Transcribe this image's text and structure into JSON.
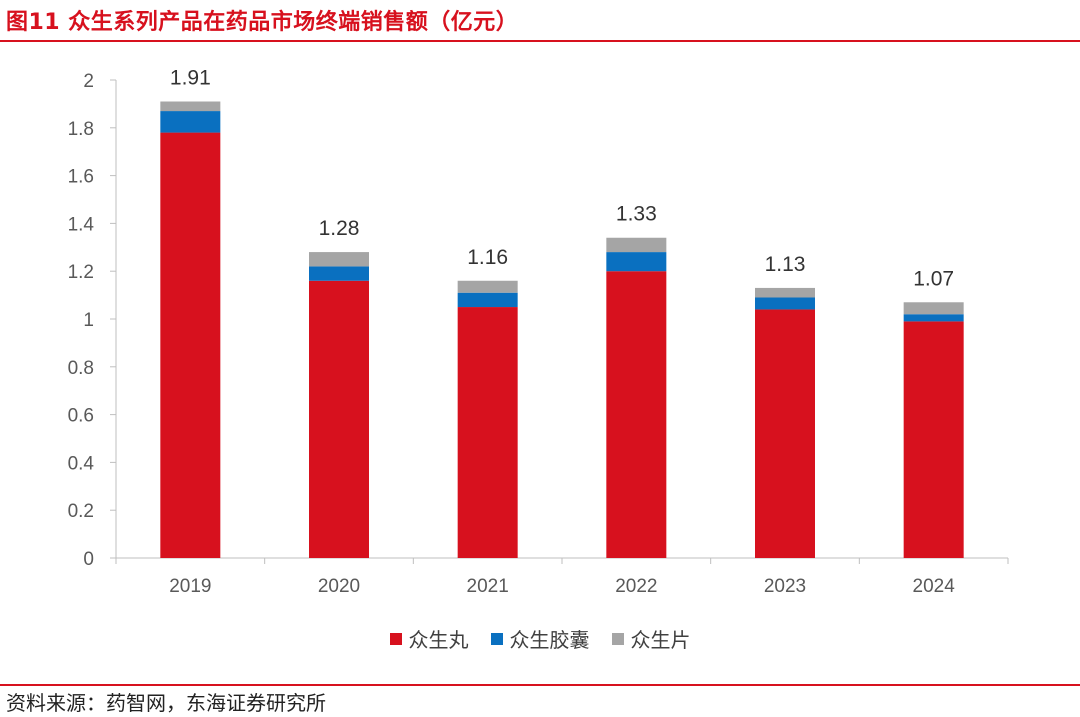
{
  "header": {
    "title": "图11  众生系列产品在药品市场终端销售额（亿元）"
  },
  "footer": {
    "source": "资料来源：药智网，东海证券研究所"
  },
  "chart_data": {
    "type": "bar",
    "stacked": true,
    "categories": [
      "2019",
      "2020",
      "2021",
      "2022",
      "2023",
      "2024"
    ],
    "series": [
      {
        "name": "众生丸",
        "color": "#d7111e",
        "values": [
          1.78,
          1.16,
          1.05,
          1.2,
          1.04,
          0.99
        ]
      },
      {
        "name": "众生胶囊",
        "color": "#0a70c0",
        "values": [
          0.09,
          0.06,
          0.06,
          0.08,
          0.05,
          0.03
        ]
      },
      {
        "name": "众生片",
        "color": "#a5a5a5",
        "values": [
          0.04,
          0.06,
          0.05,
          0.06,
          0.04,
          0.05
        ]
      }
    ],
    "totals": [
      "1.91",
      "1.28",
      "1.16",
      "1.33",
      "1.13",
      "1.07"
    ],
    "ylim": [
      0,
      2
    ],
    "yticks": [
      "0",
      "0.2",
      "0.4",
      "0.6",
      "0.8",
      "1",
      "1.2",
      "1.4",
      "1.6",
      "1.8",
      "2"
    ],
    "legend_position": "bottom-center",
    "grid": false
  }
}
